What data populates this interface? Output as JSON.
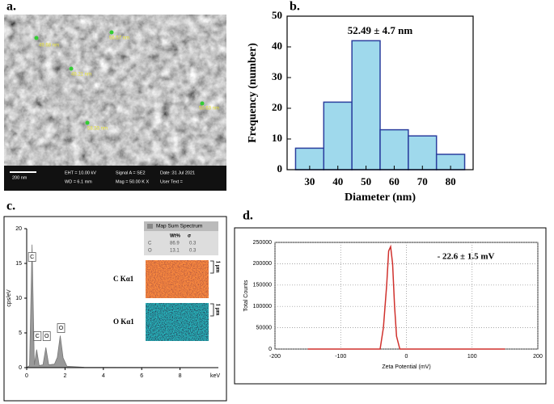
{
  "panel_labels": [
    "a.",
    "b.",
    "c.",
    "d."
  ],
  "sem": {
    "scale_bar": "200 nm",
    "info": [
      "EHT = 10.00 kV",
      "WD = 6.1 mm",
      "Signal A = SE2",
      "Mag = 50.00 K X",
      "Date :31 Jul 2021",
      "User Text ="
    ],
    "measurements": [
      "49.68 nm",
      "56.57 nm",
      "49.21 nm",
      "50.63 nm",
      "58.53 nm"
    ]
  },
  "chart_data": [
    {
      "type": "histogram",
      "annotation": "52.49 ± 4.7 nm",
      "x_label": "Diameter (nm)",
      "y_label": "Frequency (number)",
      "bins": [
        25,
        35,
        45,
        55,
        65,
        75,
        85
      ],
      "counts": [
        7,
        22,
        42,
        13,
        11,
        5
      ],
      "color": "#9fd9ec",
      "edge_color": "#2b3f9e",
      "xlim": [
        22,
        88
      ],
      "xticks": [
        30,
        40,
        50,
        60,
        70,
        80
      ],
      "ylim": [
        0,
        50
      ],
      "yticks": [
        0,
        10,
        20,
        30,
        40,
        50
      ]
    },
    {
      "type": "spectrum",
      "y_label": "cps/eV",
      "x_label": "keV",
      "color": "#999999",
      "x": [
        0,
        0.15,
        0.28,
        0.4,
        0.52,
        0.65,
        0.85,
        1.0,
        1.15,
        1.45,
        1.6,
        1.75,
        1.9,
        2.1,
        3,
        10
      ],
      "values": [
        0,
        0.3,
        17.7,
        0.4,
        2.6,
        0.3,
        0.4,
        2.9,
        0.4,
        0.5,
        1.5,
        4.6,
        1.4,
        0.2,
        0.05,
        0
      ],
      "peak_labels": [
        "C",
        "C",
        "O",
        "O"
      ],
      "xlim": [
        0,
        10
      ],
      "xticks": [
        0,
        2,
        4,
        6,
        8
      ],
      "ylim": [
        0,
        20
      ],
      "yticks": [
        0,
        5,
        10,
        15,
        20
      ],
      "inset": {
        "title": "Map Sum Spectrum",
        "columns": [
          "Wt%",
          "σ"
        ],
        "rows": [
          [
            "C",
            86.9,
            0.3
          ],
          [
            "O",
            13.1,
            0.3
          ]
        ],
        "maps": [
          {
            "label": "C Kα1",
            "scale": "1 μm"
          },
          {
            "label": "O Kα1",
            "scale": "1 μm"
          }
        ]
      }
    },
    {
      "type": "line",
      "annotation": "- 22.6 ± 1.5 mV",
      "x_label": "Zeta Potential (mV)",
      "y_label": "Total Counts",
      "color": "#d0312d",
      "grid": true,
      "x": [
        -150,
        -40,
        -35,
        -30,
        -27,
        -24,
        -21,
        -18,
        -15,
        -10,
        150
      ],
      "values": [
        0,
        0,
        50000,
        150000,
        230000,
        240000,
        200000,
        100000,
        30000,
        0,
        0
      ],
      "xlim": [
        -200,
        200
      ],
      "xticks": [
        -200,
        -100,
        0,
        100,
        200
      ],
      "ylim": [
        0,
        250000
      ],
      "yticks": [
        0,
        50000,
        100000,
        150000,
        200000,
        250000
      ]
    }
  ]
}
